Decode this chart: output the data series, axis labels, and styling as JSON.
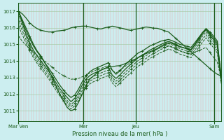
{
  "bg_color": "#cceef0",
  "line_color": "#1a5c1a",
  "grid_color_v": "#e8b0b0",
  "grid_color_h": "#aaccaa",
  "ylabel_text": "Pression niveau de la mer( hPa )",
  "xtick_labels": [
    "Mar Ven",
    "Mer",
    "Jeu",
    "Sam"
  ],
  "xtick_positions": [
    0.0,
    0.32,
    0.58,
    0.965
  ],
  "ylim": [
    1010.4,
    1017.5
  ],
  "yticks": [
    1011,
    1012,
    1013,
    1014,
    1015,
    1016,
    1017
  ],
  "figsize": [
    3.2,
    2.0
  ],
  "dpi": 100,
  "n_vgrid": 80,
  "series": [
    {
      "y": [
        1017.0,
        1016.85,
        1016.6,
        1016.3,
        1016.1,
        1015.95,
        1015.85,
        1015.8,
        1015.75,
        1015.75,
        1015.8,
        1015.82,
        1015.85,
        1015.9,
        1016.0,
        1016.05,
        1016.08,
        1016.1,
        1016.1,
        1016.05,
        1016.0,
        1015.95,
        1015.93,
        1016.0,
        1016.05,
        1016.1,
        1016.05,
        1016.0,
        1015.95,
        1015.88,
        1015.85,
        1015.9,
        1015.95,
        1016.0,
        1016.05,
        1016.02,
        1015.98,
        1015.97,
        1015.9,
        1015.82,
        1015.75,
        1015.55,
        1015.35,
        1015.15,
        1014.95,
        1014.75,
        1014.55,
        1014.35,
        1014.15,
        1013.95,
        1013.75,
        1013.55,
        1013.35,
        1013.2,
        1013.1
      ],
      "style": "solid",
      "marker": true,
      "lw": 0.9
    },
    {
      "y": [
        1017.0,
        1016.5,
        1016.0,
        1015.5,
        1015.0,
        1014.6,
        1014.3,
        1013.9,
        1013.5,
        1013.0,
        1012.5,
        1012.0,
        1011.6,
        1011.2,
        1011.0,
        1011.1,
        1011.5,
        1012.0,
        1012.5,
        1012.9,
        1013.1,
        1013.3,
        1013.45,
        1013.55,
        1013.65,
        1013.65,
        1013.7,
        1013.72,
        1013.8,
        1013.9,
        1014.0,
        1014.1,
        1014.22,
        1014.35,
        1014.45,
        1014.55,
        1014.65,
        1014.75,
        1014.9,
        1015.0,
        1015.1,
        1015.05,
        1014.95,
        1014.85,
        1014.8,
        1014.75,
        1014.7,
        1015.0,
        1015.35,
        1015.7,
        1015.95,
        1015.75,
        1015.5,
        1015.2,
        1013.1
      ],
      "style": "solid",
      "marker": true,
      "lw": 0.9
    },
    {
      "y": [
        1017.0,
        1016.4,
        1015.85,
        1015.35,
        1014.9,
        1014.55,
        1014.25,
        1013.9,
        1013.6,
        1013.25,
        1012.9,
        1012.55,
        1012.25,
        1012.0,
        1011.8,
        1011.95,
        1012.3,
        1012.75,
        1013.1,
        1013.35,
        1013.5,
        1013.6,
        1013.7,
        1013.8,
        1013.9,
        1013.45,
        1013.2,
        1013.4,
        1013.65,
        1013.9,
        1014.1,
        1014.3,
        1014.5,
        1014.6,
        1014.75,
        1014.9,
        1015.0,
        1015.1,
        1015.2,
        1015.25,
        1015.3,
        1015.22,
        1015.12,
        1015.0,
        1014.95,
        1014.88,
        1014.82,
        1015.1,
        1015.4,
        1015.7,
        1015.95,
        1015.65,
        1015.38,
        1015.08,
        1013.1
      ],
      "style": "solid",
      "marker": true,
      "lw": 0.9
    },
    {
      "y": [
        1017.0,
        1016.3,
        1015.65,
        1015.1,
        1014.65,
        1014.3,
        1014.0,
        1013.7,
        1013.4,
        1013.05,
        1012.7,
        1012.35,
        1012.05,
        1011.8,
        1011.55,
        1011.75,
        1012.1,
        1012.55,
        1012.9,
        1013.12,
        1013.25,
        1013.35,
        1013.45,
        1013.55,
        1013.6,
        1013.15,
        1012.95,
        1013.15,
        1013.4,
        1013.62,
        1013.82,
        1014.02,
        1014.22,
        1014.35,
        1014.5,
        1014.65,
        1014.77,
        1014.88,
        1015.0,
        1015.1,
        1015.18,
        1015.1,
        1015.0,
        1014.88,
        1014.8,
        1014.72,
        1014.65,
        1014.95,
        1015.28,
        1015.6,
        1015.88,
        1015.55,
        1015.28,
        1014.95,
        1013.0
      ],
      "style": "solid",
      "marker": true,
      "lw": 0.9
    },
    {
      "y": [
        1016.7,
        1016.1,
        1015.5,
        1014.95,
        1014.5,
        1014.15,
        1013.85,
        1013.55,
        1013.25,
        1012.9,
        1012.55,
        1012.2,
        1011.9,
        1011.62,
        1011.38,
        1011.58,
        1011.92,
        1012.38,
        1012.72,
        1012.95,
        1013.08,
        1013.18,
        1013.28,
        1013.38,
        1013.45,
        1013.0,
        1012.78,
        1012.98,
        1013.22,
        1013.45,
        1013.65,
        1013.85,
        1014.05,
        1014.18,
        1014.32,
        1014.48,
        1014.6,
        1014.72,
        1014.85,
        1014.95,
        1015.05,
        1014.97,
        1014.87,
        1014.75,
        1014.67,
        1014.6,
        1014.52,
        1014.82,
        1015.15,
        1015.48,
        1015.75,
        1015.42,
        1015.15,
        1014.82,
        1013.0
      ],
      "style": "dashed",
      "marker": true,
      "lw": 0.7
    },
    {
      "y": [
        1016.4,
        1015.85,
        1015.3,
        1014.8,
        1014.35,
        1014.0,
        1013.7,
        1013.4,
        1013.1,
        1012.75,
        1012.4,
        1012.05,
        1011.75,
        1011.5,
        1011.25,
        1011.45,
        1011.78,
        1012.22,
        1012.55,
        1012.78,
        1012.92,
        1013.02,
        1013.12,
        1013.22,
        1013.3,
        1012.85,
        1012.62,
        1012.82,
        1013.05,
        1013.28,
        1013.48,
        1013.68,
        1013.88,
        1014.02,
        1014.15,
        1014.32,
        1014.45,
        1014.57,
        1014.7,
        1014.8,
        1014.9,
        1014.82,
        1014.72,
        1014.6,
        1014.52,
        1014.45,
        1014.38,
        1014.65,
        1014.98,
        1015.3,
        1015.58,
        1015.25,
        1014.98,
        1014.65,
        1012.85
      ],
      "style": "dashed",
      "marker": true,
      "lw": 0.7
    },
    {
      "y": [
        1016.1,
        1015.6,
        1015.1,
        1014.62,
        1014.2,
        1013.85,
        1013.55,
        1013.25,
        1012.95,
        1012.6,
        1012.25,
        1011.9,
        1011.6,
        1011.35,
        1011.1,
        1011.3,
        1011.62,
        1012.05,
        1012.38,
        1012.62,
        1012.75,
        1012.85,
        1012.95,
        1013.05,
        1013.12,
        1012.68,
        1012.45,
        1012.65,
        1012.88,
        1013.1,
        1013.3,
        1013.5,
        1013.7,
        1013.85,
        1013.98,
        1014.15,
        1014.28,
        1014.4,
        1014.52,
        1014.62,
        1014.72,
        1014.65,
        1014.55,
        1014.42,
        1014.35,
        1014.28,
        1014.2,
        1014.48,
        1014.8,
        1015.12,
        1015.4,
        1015.08,
        1014.8,
        1014.48,
        1012.7
      ],
      "style": "dashed",
      "marker": true,
      "lw": 0.7
    },
    {
      "y": [
        1015.5,
        1015.2,
        1014.95,
        1014.72,
        1014.52,
        1014.35,
        1014.18,
        1014.0,
        1013.82,
        1013.62,
        1013.42,
        1013.25,
        1013.12,
        1013.0,
        1012.9,
        1012.92,
        1012.95,
        1013.05,
        1013.15,
        1013.28,
        1013.38,
        1013.48,
        1013.55,
        1013.65,
        1013.72,
        1013.42,
        1013.28,
        1013.45,
        1013.6,
        1013.78,
        1013.92,
        1014.08,
        1014.22,
        1014.32,
        1014.45,
        1014.55,
        1014.65,
        1014.72,
        1014.8,
        1014.85,
        1014.92,
        1014.85,
        1014.75,
        1014.62,
        1014.55,
        1014.48,
        1014.42,
        1014.52,
        1014.62,
        1014.72,
        1014.82,
        1014.52,
        1014.22,
        1013.92,
        1013.0
      ],
      "style": "dashed",
      "marker": true,
      "lw": 0.7
    }
  ]
}
